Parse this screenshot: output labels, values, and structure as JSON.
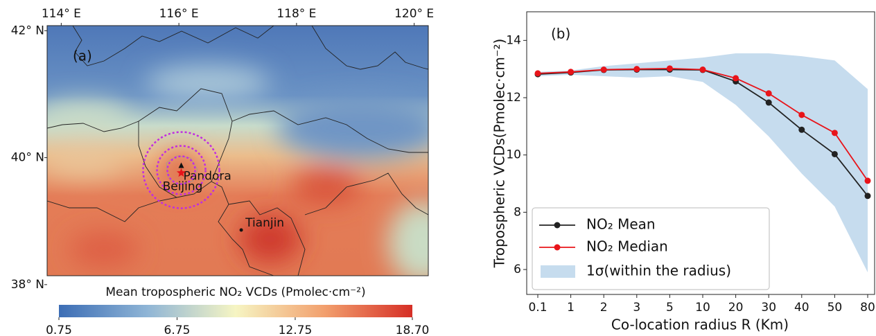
{
  "chart_data": [
    {
      "type": "map",
      "panel_label": "(a)",
      "xlim": [
        113.76,
        120.24
      ],
      "ylim": [
        38.14,
        42.08
      ],
      "xticks": [
        {
          "value": 114,
          "label": "114° E"
        },
        {
          "value": 116,
          "label": "116° E"
        },
        {
          "value": 118,
          "label": "118° E"
        },
        {
          "value": 120,
          "label": "120° E"
        }
      ],
      "yticks": [
        {
          "value": 42,
          "label": "42° N"
        },
        {
          "value": 40,
          "label": "40° N"
        },
        {
          "value": 38,
          "label": "38° N"
        }
      ],
      "points": [
        {
          "name": "Pandora",
          "lon": 116.04,
          "lat": 39.87,
          "marker": "triangle",
          "color": "#111111"
        },
        {
          "name": "Beijing",
          "lon": 116.04,
          "lat": 39.76,
          "marker": "star",
          "color": "#e8141a"
        },
        {
          "name": "Tianjin",
          "lon": 117.06,
          "lat": 38.86,
          "marker": "dot",
          "color": "#111111"
        }
      ],
      "colorbar": {
        "title": "Mean tropospheric NO₂ VCDs (Pmolec·cm⁻²)",
        "lim": [
          0.75,
          18.7
        ],
        "ticks": [
          0.75,
          6.75,
          12.75,
          {
            "value": 18.7,
            "label": "18.70"
          }
        ]
      }
    },
    {
      "type": "line",
      "panel_label": "(b)",
      "x_label": "Co-location radius R (Km)",
      "y_label": "Tropospheric VCDs(Pmolec·cm⁻²)",
      "categories": [
        "0.1",
        "1",
        "2",
        "3",
        "5",
        "10",
        "20",
        "30",
        "40",
        "50",
        "80"
      ],
      "ylim": [
        5.13,
        15.0
      ],
      "yticks": [
        6,
        8,
        10,
        12,
        14
      ],
      "legend": "lower left",
      "series": [
        {
          "name": "NO₂ Mean",
          "color": "#222222",
          "values": [
            12.82,
            12.88,
            12.97,
            12.98,
            12.98,
            12.97,
            12.57,
            11.83,
            10.88,
            10.03,
            8.57
          ]
        },
        {
          "name": "NO₂ Median",
          "color": "#e8141a",
          "values": [
            12.85,
            12.9,
            12.98,
            13.0,
            13.02,
            12.98,
            12.68,
            12.15,
            11.4,
            10.77,
            9.1
          ]
        }
      ],
      "band": {
        "name": "1σ(within the radius)",
        "color": "#c6dcee",
        "lower": [
          12.75,
          12.8,
          12.75,
          12.7,
          12.75,
          12.55,
          11.75,
          10.65,
          9.35,
          8.2,
          5.9
        ],
        "upper": [
          12.9,
          12.95,
          13.1,
          13.2,
          13.3,
          13.4,
          13.55,
          13.55,
          13.45,
          13.3,
          12.3
        ]
      }
    }
  ]
}
